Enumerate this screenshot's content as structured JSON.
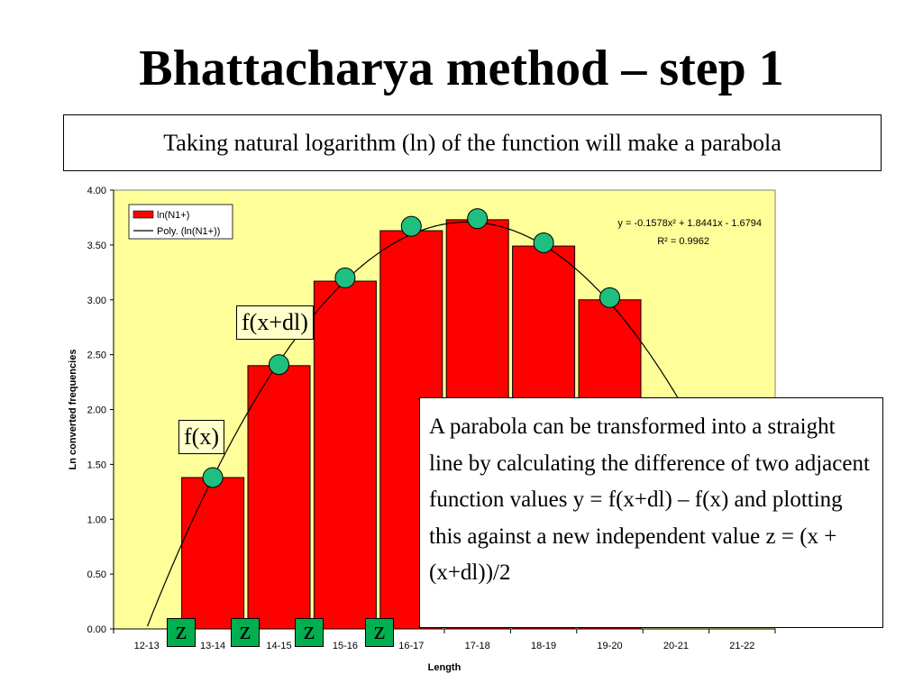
{
  "slide": {
    "title": "Bhattacharya method – step 1",
    "subtitle": "Taking natural logarithm (ln) of the function will make a parabola",
    "note": "A parabola can be transformed into a straight line by calculating the difference of two adjacent function values y = f(x+dl) – f(x) and plotting this against a new independent value z = (x +(x+dl))/2",
    "callout_fx": "f(x)",
    "callout_fxdl": "f(x+dl)",
    "z_labels": [
      "z",
      "z",
      "z",
      "z"
    ]
  },
  "chart_data": {
    "type": "bar",
    "categories": [
      "12-13",
      "13-14",
      "14-15",
      "15-16",
      "16-17",
      "17-18",
      "18-19",
      "19-20",
      "20-21",
      "21-22"
    ],
    "series": [
      {
        "name": "ln(N1+)",
        "values": [
          null,
          1.38,
          2.4,
          3.17,
          3.63,
          3.73,
          3.49,
          3.0,
          null,
          null
        ],
        "color": "#ff0000"
      }
    ],
    "markers": [
      {
        "x": 1.5,
        "y": 1.38
      },
      {
        "x": 2.5,
        "y": 2.41
      },
      {
        "x": 3.5,
        "y": 3.2
      },
      {
        "x": 4.5,
        "y": 3.67
      },
      {
        "x": 5.5,
        "y": 3.74
      },
      {
        "x": 6.5,
        "y": 3.52
      },
      {
        "x": 7.5,
        "y": 3.02
      }
    ],
    "trendline": {
      "name": "Poly. (ln(N1+))",
      "a": -0.1578,
      "b": 1.8441,
      "c": -1.6794
    },
    "equation": "y = -0.1578x² + 1.8441x - 1.6794",
    "r2": "R² = 0.9962",
    "xlabel": "Length",
    "ylabel": "Ln converted frequencies",
    "ylim": [
      0,
      4
    ],
    "yticks": [
      "0.00",
      "0.50",
      "1.00",
      "1.50",
      "2.00",
      "2.50",
      "3.00",
      "3.50",
      "4.00"
    ],
    "plot_bg": "#ffff99",
    "marker_color": "#1fbf7f",
    "legend": "top-left",
    "grid": false
  }
}
